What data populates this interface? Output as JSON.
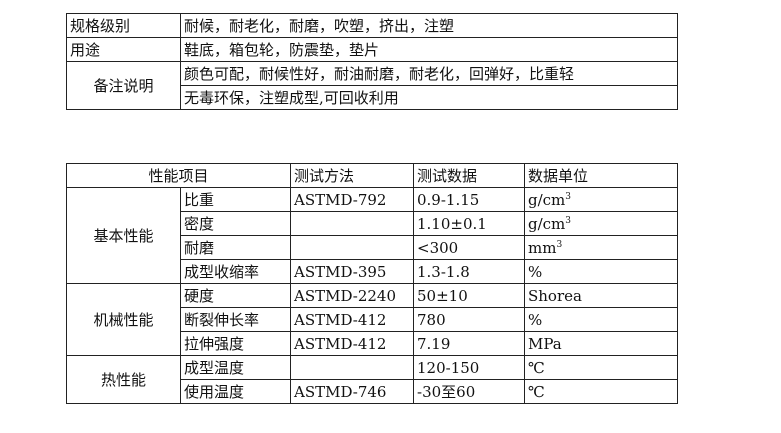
{
  "spec_table": {
    "rows": [
      {
        "label": "规格级别",
        "value": "耐候，耐老化，耐磨，吹塑，挤出，注塑"
      },
      {
        "label": "用途",
        "value": "鞋底，箱包轮，防震垫，垫片"
      },
      {
        "label": "备注说明",
        "values": [
          "颜色可配，耐候性好，耐油耐磨，耐老化，回弹好，比重轻",
          "无毒环保，注塑成型,可回收利用"
        ]
      }
    ]
  },
  "property_table": {
    "headers": [
      "性能项目",
      "测试方法",
      "测试数据",
      "数据单位"
    ],
    "groups": [
      {
        "name": "基本性能",
        "rows": [
          {
            "item": "比重",
            "method": "ASTMD-792",
            "data": "0.9-1.15",
            "unit": "g/cm",
            "unit_sup": "3"
          },
          {
            "item": "密度",
            "method": "",
            "data": "1.10±0.1",
            "unit": "g/cm",
            "unit_sup": "3"
          },
          {
            "item": "耐磨",
            "method": "",
            "data": "<300",
            "unit": "mm",
            "unit_sup": "3"
          },
          {
            "item": "成型收缩率",
            "method": "ASTMD-395",
            "data": "1.3-1.8",
            "unit": "%",
            "unit_sup": ""
          }
        ]
      },
      {
        "name": "机械性能",
        "rows": [
          {
            "item": "硬度",
            "method": "ASTMD-2240",
            "data": "50±10",
            "unit": "Shorea"
          },
          {
            "item": "断裂伸长率",
            "method": "ASTMD-412",
            "data": "780",
            "unit": "%"
          },
          {
            "item": "拉伸强度",
            "method": "ASTMD-412",
            "data": "7.19",
            "unit": "MPa"
          }
        ]
      },
      {
        "name": "热性能",
        "rows": [
          {
            "item": "成型温度",
            "method": "",
            "data": "120-150",
            "unit": "℃"
          },
          {
            "item": "使用温度",
            "method": "ASTMD-746",
            "data": "-30至60",
            "unit": "℃"
          }
        ]
      }
    ]
  }
}
